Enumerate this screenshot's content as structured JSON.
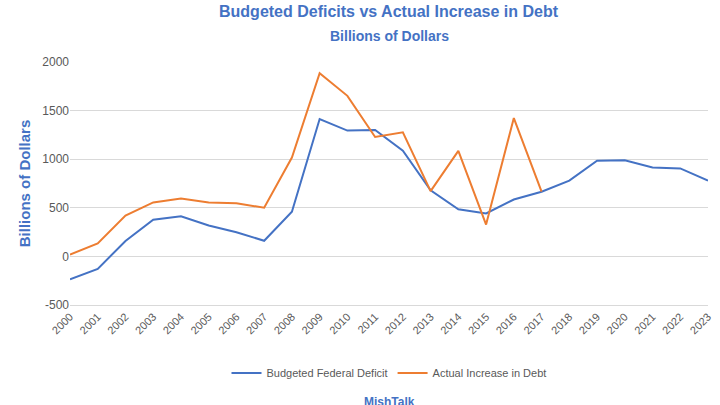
{
  "chart_data": {
    "type": "line",
    "title": "Budgeted Deficits vs Actual Increase in Debt",
    "subtitle": "Billions of Dollars",
    "y_label": "Billions of Dollars",
    "annotations": [
      "MishTalk"
    ],
    "categories": [
      "2000",
      "2001",
      "2002",
      "2003",
      "2004",
      "2005",
      "2006",
      "2007",
      "2008",
      "2009",
      "2010",
      "2011",
      "2012",
      "2013",
      "2014",
      "2015",
      "2016",
      "2017",
      "2018",
      "2019",
      "2020",
      "2021",
      "2022",
      "2023"
    ],
    "series": [
      {
        "name": "Budgeted Federal Deficit",
        "color": "#4472c4",
        "values": [
          -236,
          -128,
          158,
          378,
          413,
          318,
          248,
          161,
          459,
          1413,
          1294,
          1300,
          1087,
          680,
          485,
          442,
          585,
          665,
          779,
          984,
          990,
          915,
          905,
          779
        ]
      },
      {
        "name": "Actual Increase in Debt",
        "color": "#ed7d31",
        "values": [
          18,
          133,
          421,
          555,
          596,
          554,
          546,
          501,
          1017,
          1885,
          1652,
          1229,
          1276,
          672,
          1086,
          327,
          1423,
          666,
          null,
          null,
          null,
          null,
          null,
          null
        ]
      }
    ],
    "ylim": [
      -500,
      2000
    ],
    "yticks": [
      -500,
      0,
      500,
      1000,
      1500,
      2000
    ],
    "grid": true,
    "legend": "bottom"
  }
}
